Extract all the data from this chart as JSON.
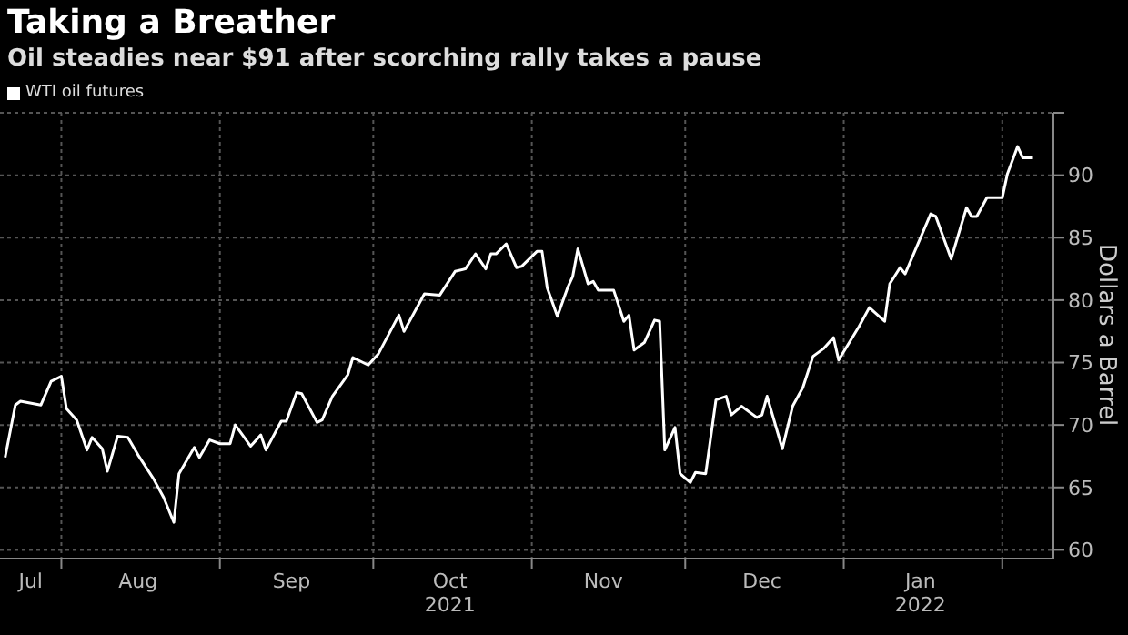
{
  "chart_data": {
    "type": "line",
    "title": "Taking a Breather",
    "subtitle": "Oil steadies near $91 after scorching rally takes a pause",
    "ylabel": "Dollars a Barrel",
    "x": [
      "2021-07-21",
      "2021-07-23",
      "2021-07-24",
      "2021-07-28",
      "2021-07-30",
      "2021-08-01",
      "2021-08-02",
      "2021-08-04",
      "2021-08-06",
      "2021-08-07",
      "2021-08-09",
      "2021-08-10",
      "2021-08-12",
      "2021-08-14",
      "2021-08-16",
      "2021-08-19",
      "2021-08-21",
      "2021-08-23",
      "2021-08-24",
      "2021-08-27",
      "2021-08-28",
      "2021-08-30",
      "2021-09-01",
      "2021-09-03",
      "2021-09-04",
      "2021-09-07",
      "2021-09-09",
      "2021-09-10",
      "2021-09-13",
      "2021-09-14",
      "2021-09-16",
      "2021-09-17",
      "2021-09-20",
      "2021-09-21",
      "2021-09-23",
      "2021-09-26",
      "2021-09-27",
      "2021-09-30",
      "2021-10-02",
      "2021-10-06",
      "2021-10-07",
      "2021-10-11",
      "2021-10-14",
      "2021-10-17",
      "2021-10-19",
      "2021-10-21",
      "2021-10-23",
      "2021-10-24",
      "2021-10-25",
      "2021-10-27",
      "2021-10-29",
      "2021-10-30",
      "2021-11-02",
      "2021-11-03",
      "2021-11-04",
      "2021-11-06",
      "2021-11-08",
      "2021-11-09",
      "2021-11-10",
      "2021-11-12",
      "2021-11-13",
      "2021-11-14",
      "2021-11-17",
      "2021-11-19",
      "2021-11-20",
      "2021-11-21",
      "2021-11-23",
      "2021-11-25",
      "2021-11-26",
      "2021-11-27",
      "2021-11-29",
      "2021-11-30",
      "2021-12-02",
      "2021-12-03",
      "2021-12-05",
      "2021-12-07",
      "2021-12-09",
      "2021-12-10",
      "2021-12-12",
      "2021-12-15",
      "2021-12-16",
      "2021-12-17",
      "2021-12-20",
      "2021-12-22",
      "2021-12-24",
      "2021-12-26",
      "2021-12-28",
      "2021-12-30",
      "2021-12-31",
      "2022-01-04",
      "2022-01-06",
      "2022-01-09",
      "2022-01-10",
      "2022-01-12",
      "2022-01-13",
      "2022-01-18",
      "2022-01-19",
      "2022-01-22",
      "2022-01-25",
      "2022-01-26",
      "2022-01-27",
      "2022-01-29",
      "2022-02-01",
      "2022-02-02",
      "2022-02-04",
      "2022-02-05",
      "2022-02-07"
    ],
    "series": [
      {
        "name": "WTI oil futures",
        "color": "#ffffff",
        "values": [
          67.4,
          71.6,
          71.9,
          71.6,
          73.5,
          73.9,
          71.3,
          70.4,
          68.0,
          69.0,
          68.1,
          66.3,
          69.1,
          69.0,
          67.6,
          65.7,
          64.2,
          62.2,
          66.1,
          68.2,
          67.4,
          68.8,
          68.5,
          68.5,
          70.0,
          68.3,
          69.2,
          68.0,
          70.3,
          70.3,
          72.6,
          72.5,
          70.2,
          70.4,
          72.3,
          74.0,
          75.4,
          74.8,
          75.7,
          78.8,
          77.5,
          80.5,
          80.4,
          82.3,
          82.5,
          83.7,
          82.5,
          83.7,
          83.7,
          84.5,
          82.6,
          82.7,
          83.9,
          83.9,
          81.0,
          78.7,
          81.0,
          81.9,
          84.1,
          81.3,
          81.5,
          80.8,
          80.8,
          78.3,
          78.8,
          76.0,
          76.6,
          78.4,
          78.3,
          68.0,
          69.8,
          66.1,
          65.4,
          66.2,
          66.1,
          72.0,
          72.3,
          70.8,
          71.5,
          70.6,
          70.8,
          72.3,
          68.1,
          71.5,
          73.0,
          75.5,
          76.1,
          77.0,
          75.2,
          77.9,
          79.4,
          78.3,
          81.3,
          82.6,
          82.1,
          86.9,
          86.7,
          83.3,
          87.4,
          86.7,
          86.7,
          88.2,
          88.2,
          90.1,
          92.3,
          91.4,
          91.4
        ]
      }
    ],
    "xlim": [
      "2021-07-20",
      "2022-02-11"
    ],
    "xticks": [
      {
        "value": "2021-07-26",
        "label": "Jul"
      },
      {
        "value": "2021-08-01",
        "label": null
      },
      {
        "value": "2021-08-16",
        "label": "Aug"
      },
      {
        "value": "2021-09-01",
        "label": null
      },
      {
        "value": "2021-09-15",
        "label": "Sep"
      },
      {
        "value": "2021-10-01",
        "label": null
      },
      {
        "value": "2021-10-16",
        "label": "Oct\n2021"
      },
      {
        "value": "2021-11-01",
        "label": null
      },
      {
        "value": "2021-11-15",
        "label": "Nov"
      },
      {
        "value": "2021-12-01",
        "label": null
      },
      {
        "value": "2021-12-16",
        "label": "Dec"
      },
      {
        "value": "2022-01-01",
        "label": null
      },
      {
        "value": "2022-01-16",
        "label": "Jan\n2022"
      },
      {
        "value": "2022-02-01",
        "label": null
      }
    ],
    "ylim": [
      59.3,
      95
    ],
    "yticks": [
      60,
      65,
      70,
      75,
      80,
      85,
      90,
      {
        "value": 95,
        "label": null
      }
    ],
    "grid": true,
    "legend": "top left",
    "marker": "none",
    "line_style": "solid"
  }
}
